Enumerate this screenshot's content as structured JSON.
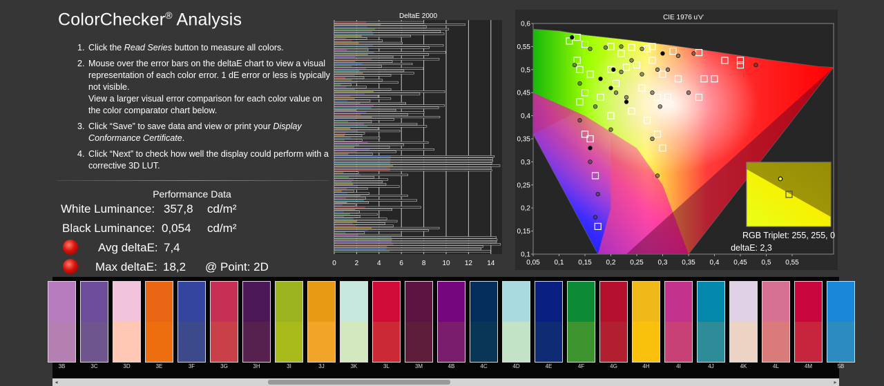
{
  "header": {
    "title": "ColorChecker",
    "registered": "®",
    "title_rest": " Analysis"
  },
  "instructions": [
    {
      "num": "1.",
      "parts": [
        {
          "t": "Click the "
        },
        {
          "t": "Read Series",
          "i": true
        },
        {
          "t": " button to measure all colors."
        }
      ]
    },
    {
      "num": "2.",
      "parts": [
        {
          "t": "Mouse over the error bars on the deltaE chart to view a visual representation of each color error. 1 dE error or less is typically not visible."
        },
        {
          "br": true
        },
        {
          "t": "View a larger visual error comparison for each color value on the color comparator chart below."
        }
      ]
    },
    {
      "num": "3.",
      "parts": [
        {
          "t": "Click “Save” to save data and view or print your "
        },
        {
          "t": "Display Conformance Certificate",
          "i": true
        },
        {
          "t": "."
        }
      ]
    },
    {
      "num": "4.",
      "parts": [
        {
          "t": "Click “Next” to check how well the display could perform with a corrective 3D LUT."
        }
      ]
    }
  ],
  "performance": {
    "heading": "Performance Data",
    "white_label": "White Luminance:",
    "white_value": "357,8",
    "white_unit": "cd/m²",
    "black_label": "Black Luminance:",
    "black_value": "0,054",
    "black_unit": "cd/m²",
    "avg_label": "Avg deltaE:",
    "avg_value": "7,4",
    "max_label": "Max deltaE:",
    "max_value": "18,2",
    "point_label": "@ Point: 2D",
    "status_color": "#d8120a"
  },
  "deltae_chart": {
    "title": "DeltaE 2000",
    "x_ticks": [
      "0",
      "2",
      "4",
      "6",
      "8",
      "10",
      "12",
      "14"
    ],
    "xlim": [
      0,
      15
    ]
  },
  "cie_chart": {
    "title": "CIE 1976 u'v'",
    "x_ticks": [
      "0,05",
      "0,1",
      "0,15",
      "0,2",
      "0,25",
      "0,3",
      "0,35",
      "0,4",
      "0,45",
      "0,5",
      "0,55"
    ],
    "y_ticks": [
      "0,6",
      "0,55",
      "0,5",
      "0,45",
      "0,4",
      "0,35",
      "0,3",
      "0,25",
      "0,2",
      "0,15",
      "0,1"
    ],
    "xlim": [
      0.05,
      0.63
    ],
    "ylim": [
      0.1,
      0.6
    ],
    "inset_rgb": "RGB Triplet: 255, 255, 0",
    "inset_delta": "deltaE: 2,3"
  },
  "swatches": [
    {
      "label": "3B",
      "top": "#b77cbd",
      "bottom": "#b480b2"
    },
    {
      "label": "3C",
      "top": "#6d4d9c",
      "bottom": "#6e558d"
    },
    {
      "label": "3D",
      "top": "#f1c3dc",
      "bottom": "#fec8b4"
    },
    {
      "label": "3E",
      "top": "#e96615",
      "bottom": "#ec6e0f"
    },
    {
      "label": "3F",
      "top": "#3445a0",
      "bottom": "#3c4a8c"
    },
    {
      "label": "3G",
      "top": "#c72f55",
      "bottom": "#c94048"
    },
    {
      "label": "3H",
      "top": "#4c1858",
      "bottom": "#56214f"
    },
    {
      "label": "3I",
      "top": "#9bb31f",
      "bottom": "#a9ba1b"
    },
    {
      "label": "3J",
      "top": "#e89a15",
      "bottom": "#f1a427"
    },
    {
      "label": "3K",
      "top": "#c5e7de",
      "bottom": "#d4e8bf"
    },
    {
      "label": "3L",
      "top": "#d10b38",
      "bottom": "#cb2935"
    },
    {
      "label": "3M",
      "top": "#5c1443",
      "bottom": "#5e1d3b"
    },
    {
      "label": "4B",
      "top": "#76067d",
      "bottom": "#7a1d6d"
    },
    {
      "label": "4C",
      "top": "#052e5d",
      "bottom": "#093556"
    },
    {
      "label": "4D",
      "top": "#a9dae0",
      "bottom": "#c3e3c6"
    },
    {
      "label": "4E",
      "top": "#091f82",
      "bottom": "#0f2b73"
    },
    {
      "label": "4F",
      "top": "#0d8a35",
      "bottom": "#3d932d"
    },
    {
      "label": "4G",
      "top": "#b6102f",
      "bottom": "#b21f30"
    },
    {
      "label": "4H",
      "top": "#eeb919",
      "bottom": "#f9c00c"
    },
    {
      "label": "4I",
      "top": "#c3338d",
      "bottom": "#c84176"
    },
    {
      "label": "4J",
      "top": "#0388ab",
      "bottom": "#2e8b98"
    },
    {
      "label": "4K",
      "top": "#e0d0e6",
      "bottom": "#ecd3c3"
    },
    {
      "label": "4L",
      "top": "#d67194",
      "bottom": "#d97b7b"
    },
    {
      "label": "4M",
      "top": "#c7063d",
      "bottom": "#c7243d"
    },
    {
      "label": "5B",
      "top": "#1a87d9",
      "bottom": "#2c8bbf"
    }
  ],
  "scrollbar": {
    "left_arrow": "◂",
    "right_arrow": "▸"
  }
}
